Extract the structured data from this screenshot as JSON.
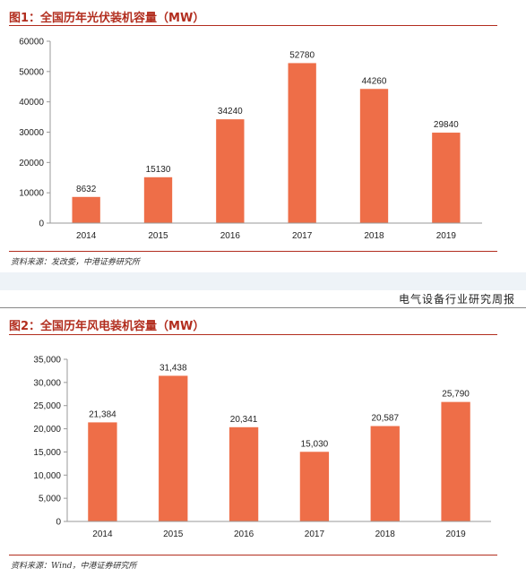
{
  "figure1": {
    "title": "图1：全国历年光伏装机容量（MW）",
    "source": "资料来源：发改委，中港证券研究所"
  },
  "running_header": "电气设备行业研究周报",
  "figure2": {
    "title": "图2：全国历年风电装机容量（MW）",
    "source": "资料来源：Wind，中港证券研究所"
  },
  "colors": {
    "bar": "#ee6e48",
    "title": "#b22d1e",
    "axis": "#999999"
  },
  "chart_data": [
    {
      "type": "bar",
      "title": "图1：全国历年光伏装机容量（MW）",
      "xlabel": "",
      "ylabel": "",
      "categories": [
        "2014",
        "2015",
        "2016",
        "2017",
        "2018",
        "2019"
      ],
      "values": [
        8632,
        15130,
        34240,
        52780,
        44260,
        29840
      ],
      "data_labels": [
        "8632",
        "15130",
        "34240",
        "52780",
        "44260",
        "29840"
      ],
      "ylim": [
        0,
        60000
      ],
      "yticks": [
        0,
        10000,
        20000,
        30000,
        40000,
        50000,
        60000
      ],
      "ytick_labels": [
        "0",
        "10000",
        "20000",
        "30000",
        "40000",
        "50000",
        "60000"
      ],
      "grid": false
    },
    {
      "type": "bar",
      "title": "图2：全国历年风电装机容量（MW）",
      "xlabel": "",
      "ylabel": "",
      "categories": [
        "2014",
        "2015",
        "2016",
        "2017",
        "2018",
        "2019"
      ],
      "values": [
        21384,
        31438,
        20341,
        15030,
        20587,
        25790
      ],
      "data_labels": [
        "21,384",
        "31,438",
        "20,341",
        "15,030",
        "20,587",
        "25,790"
      ],
      "ylim": [
        0,
        35000
      ],
      "yticks": [
        0,
        5000,
        10000,
        15000,
        20000,
        25000,
        30000,
        35000
      ],
      "ytick_labels": [
        "0",
        "5,000",
        "10,000",
        "15,000",
        "20,000",
        "25,000",
        "30,000",
        "35,000"
      ],
      "grid": false
    }
  ]
}
